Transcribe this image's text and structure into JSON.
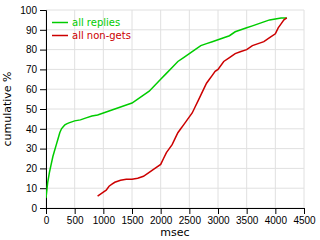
{
  "chart_data": {
    "type": "line",
    "xlabel": "msec",
    "ylabel": "cumulative %",
    "xlim": [
      0,
      4500
    ],
    "ylim": [
      0,
      100
    ],
    "xticks": [
      0,
      500,
      1000,
      1500,
      2000,
      2500,
      3000,
      3500,
      4000,
      4500
    ],
    "yticks": [
      0,
      10,
      20,
      30,
      40,
      50,
      60,
      70,
      80,
      90,
      100
    ],
    "grid": true,
    "legend": "top-left",
    "series": [
      {
        "name": "all replies",
        "color": "#00cc00",
        "x": [
          0,
          30,
          60,
          90,
          120,
          150,
          180,
          210,
          240,
          270,
          300,
          330,
          360,
          400,
          450,
          500,
          600,
          700,
          800,
          900,
          1000,
          1100,
          1200,
          1300,
          1400,
          1500,
          1600,
          1700,
          1800,
          1900,
          2000,
          2100,
          2200,
          2300,
          2400,
          2500,
          2600,
          2700,
          2800,
          2900,
          3000,
          3100,
          3200,
          3300,
          3400,
          3500,
          3600,
          3700,
          3800,
          3900,
          4000,
          4100,
          4200
        ],
        "values": [
          5,
          13,
          18,
          22,
          26,
          29,
          32,
          35,
          38,
          40,
          41,
          42,
          42.5,
          43,
          43.5,
          44,
          44.5,
          45.5,
          46.5,
          47,
          48,
          49,
          50,
          51,
          52,
          53,
          55,
          57,
          59,
          62,
          65,
          68,
          71,
          74,
          76,
          78,
          80,
          82,
          83,
          84,
          85,
          86,
          87,
          89,
          90,
          91,
          92,
          93,
          94,
          95,
          95.5,
          96,
          96
        ]
      },
      {
        "name": "all non-gets",
        "color": "#cc0000",
        "x": [
          900,
          950,
          1000,
          1050,
          1100,
          1150,
          1200,
          1250,
          1300,
          1400,
          1500,
          1600,
          1700,
          1800,
          1900,
          2000,
          2050,
          2100,
          2150,
          2200,
          2250,
          2300,
          2350,
          2400,
          2450,
          2500,
          2550,
          2600,
          2650,
          2700,
          2750,
          2800,
          2850,
          2900,
          2950,
          3000,
          3100,
          3200,
          3300,
          3400,
          3500,
          3600,
          3700,
          3800,
          3900,
          4000,
          4050,
          4100,
          4150,
          4200
        ],
        "values": [
          6,
          7,
          8,
          9,
          11,
          12,
          13,
          13.5,
          14,
          14.5,
          14.5,
          15,
          16,
          18,
          20,
          22,
          25,
          28,
          30,
          32,
          35,
          38,
          40,
          42,
          44,
          46,
          48,
          51,
          54,
          57,
          60,
          63,
          65,
          67,
          69,
          70,
          74,
          76,
          78,
          79,
          80,
          82,
          83,
          84,
          86,
          88,
          91,
          93,
          95,
          96
        ]
      }
    ]
  }
}
